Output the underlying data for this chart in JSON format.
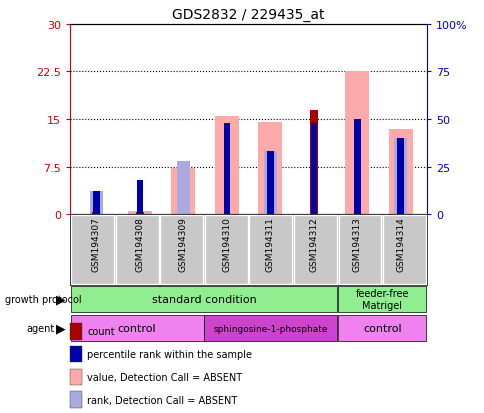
{
  "title": "GDS2832 / 229435_at",
  "samples": [
    "GSM194307",
    "GSM194308",
    "GSM194309",
    "GSM194310",
    "GSM194311",
    "GSM194312",
    "GSM194313",
    "GSM194314"
  ],
  "left_ylim": [
    0,
    30
  ],
  "right_ylim": [
    0,
    100
  ],
  "left_yticks": [
    0,
    7.5,
    15,
    22.5,
    30
  ],
  "right_yticks": [
    0,
    25,
    50,
    75,
    100
  ],
  "left_yticklabels": [
    "0",
    "7.5",
    "15",
    "22.5",
    "30"
  ],
  "right_yticklabels": [
    "0",
    "25",
    "50",
    "75",
    "100%"
  ],
  "count_values": [
    0.4,
    0.4,
    0,
    0,
    0,
    16.5,
    0,
    0
  ],
  "percentile_values_pct": [
    12,
    18,
    0,
    48,
    33,
    48,
    50,
    40
  ],
  "value_absent_bars": [
    0,
    0.5,
    7.3,
    15.5,
    14.5,
    0,
    22.5,
    13.5
  ],
  "rank_absent_bars_pct": [
    12,
    0,
    28,
    0,
    33,
    0,
    0,
    40
  ],
  "count_color": "#AA0000",
  "percentile_color": "#0000AA",
  "value_absent_color": "#FFAAAA",
  "rank_absent_color": "#AAAADD",
  "left_axis_color": "#CC0000",
  "right_axis_color": "#0000CC",
  "bg_color": "#FFFFFF",
  "gp_color_std": "#90EE90",
  "gp_color_ff": "#90EE90",
  "agent_light_color": "#EE82EE",
  "agent_dark_color": "#CC44CC",
  "legend_items": [
    {
      "color": "#AA0000",
      "label": "count"
    },
    {
      "color": "#0000AA",
      "label": "percentile rank within the sample"
    },
    {
      "color": "#FFAAAA",
      "label": "value, Detection Call = ABSENT"
    },
    {
      "color": "#AAAADD",
      "label": "rank, Detection Call = ABSENT"
    }
  ]
}
